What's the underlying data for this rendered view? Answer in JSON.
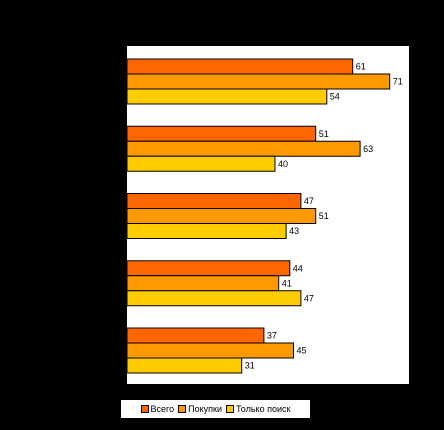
{
  "chart_data": {
    "type": "bar",
    "orientation": "horizontal",
    "categories": [
      "",
      "",
      "",
      "",
      ""
    ],
    "series": [
      {
        "name": "Всего",
        "color": "#ff6600",
        "values": [
          61,
          51,
          47,
          44,
          37
        ]
      },
      {
        "name": "Покупки",
        "color": "#ff9900",
        "values": [
          71,
          63,
          51,
          41,
          45
        ]
      },
      {
        "name": "Только поиск",
        "color": "#ffcc00",
        "values": [
          54,
          40,
          43,
          47,
          31
        ]
      }
    ],
    "xlim": [
      0,
      80
    ],
    "grid": false,
    "legend_position": "bottom",
    "title": "",
    "xlabel": "",
    "ylabel": ""
  },
  "colors": {
    "background": "#000000",
    "plot_area": "#ffffff",
    "bar_outline": "#000000"
  }
}
